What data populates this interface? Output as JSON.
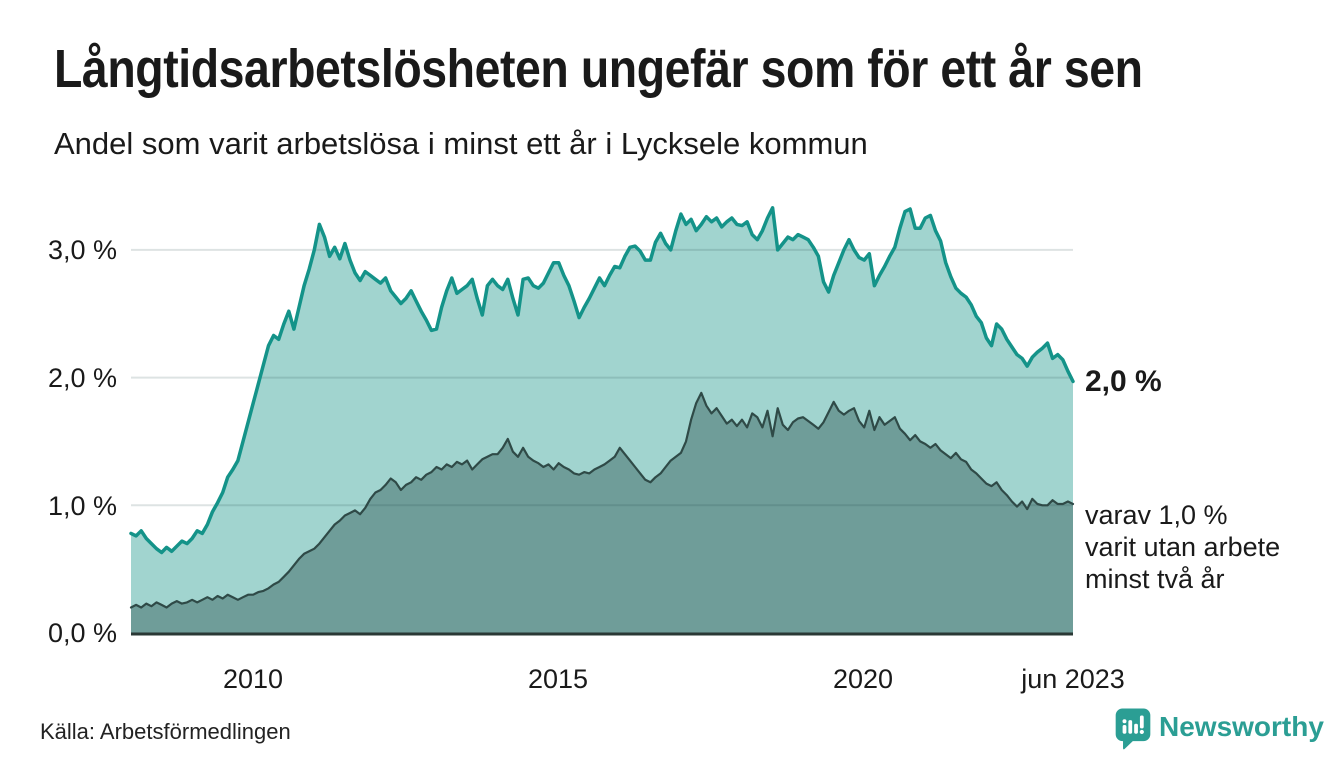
{
  "page": {
    "title": "Långtidsarbetslösheten ungefär som för ett år sen",
    "subtitle": "Andel som varit arbetslösa i minst ett år i Lycksele kommun",
    "source": "Källa: Arbetsförmedlingen",
    "brand": "Newsworthy",
    "background_color": "#ffffff",
    "text_color": "#1a1a1a",
    "brand_color": "#2b9e94"
  },
  "annotations": {
    "end_label": "2,0 %",
    "note_lines": [
      "varav 1,0 %",
      "varit utan arbete",
      "minst två år"
    ]
  },
  "chart_data": {
    "type": "area",
    "title": "Långtidsarbetslösheten ungefär som för ett år sen",
    "subtitle": "Andel som varit arbetslösa i minst ett år i Lycksele kommun",
    "x_unit": "month",
    "x_range": [
      "jan 2008",
      "jun 2023"
    ],
    "x_ticks": [
      {
        "label": "2010"
      },
      {
        "label": "2015"
      },
      {
        "label": "2020"
      },
      {
        "label": "jun 2023"
      }
    ],
    "y_ticks": [
      {
        "label": "0,0 %",
        "value": 0
      },
      {
        "label": "1,0 %",
        "value": 1
      },
      {
        "label": "2,0 %",
        "value": 2
      },
      {
        "label": "3,0 %",
        "value": 3
      }
    ],
    "ylim": [
      0,
      3.45
    ],
    "grid": true,
    "grid_color": "rgba(25,65,65,0.15)",
    "axis_line_color": "#2a3835",
    "series": [
      {
        "name": "Arbetslösa minst ett år",
        "line_color": "#149389",
        "fill_color": "#a1d4cf",
        "line_width": 3.5,
        "end_value_label": "2,0 %",
        "values": [
          0.78,
          0.76,
          0.8,
          0.74,
          0.7,
          0.66,
          0.63,
          0.67,
          0.64,
          0.68,
          0.72,
          0.7,
          0.74,
          0.8,
          0.78,
          0.85,
          0.95,
          1.02,
          1.1,
          1.22,
          1.28,
          1.35,
          1.5,
          1.65,
          1.8,
          1.95,
          2.1,
          2.25,
          2.33,
          2.3,
          2.42,
          2.52,
          2.38,
          2.55,
          2.72,
          2.85,
          3.0,
          3.2,
          3.1,
          2.95,
          3.02,
          2.93,
          3.05,
          2.92,
          2.82,
          2.76,
          2.83,
          2.8,
          2.77,
          2.74,
          2.78,
          2.68,
          2.63,
          2.58,
          2.62,
          2.68,
          2.6,
          2.52,
          2.45,
          2.37,
          2.38,
          2.55,
          2.68,
          2.78,
          2.66,
          2.69,
          2.72,
          2.77,
          2.62,
          2.49,
          2.72,
          2.77,
          2.72,
          2.69,
          2.77,
          2.62,
          2.49,
          2.77,
          2.78,
          2.72,
          2.7,
          2.74,
          2.82,
          2.9,
          2.9,
          2.8,
          2.72,
          2.6,
          2.47,
          2.55,
          2.62,
          2.7,
          2.78,
          2.72,
          2.8,
          2.87,
          2.86,
          2.95,
          3.02,
          3.03,
          2.99,
          2.92,
          2.92,
          3.06,
          3.13,
          3.05,
          3.0,
          3.15,
          3.28,
          3.2,
          3.24,
          3.15,
          3.2,
          3.26,
          3.22,
          3.25,
          3.18,
          3.22,
          3.25,
          3.2,
          3.19,
          3.22,
          3.12,
          3.08,
          3.15,
          3.25,
          3.33,
          3.0,
          3.05,
          3.1,
          3.08,
          3.12,
          3.1,
          3.08,
          3.02,
          2.95,
          2.75,
          2.67,
          2.8,
          2.9,
          3.0,
          3.08,
          3.0,
          2.94,
          2.92,
          2.97,
          2.72,
          2.8,
          2.87,
          2.95,
          3.02,
          3.17,
          3.3,
          3.32,
          3.17,
          3.17,
          3.25,
          3.27,
          3.15,
          3.07,
          2.9,
          2.79,
          2.7,
          2.66,
          2.63,
          2.57,
          2.48,
          2.43,
          2.31,
          2.25,
          2.42,
          2.38,
          2.3,
          2.24,
          2.18,
          2.15,
          2.09,
          2.16,
          2.2,
          2.23,
          2.27,
          2.15,
          2.18,
          2.14,
          2.05,
          1.97
        ]
      },
      {
        "name": "Arbetslösa minst två år",
        "line_color": "#2f4a47",
        "fill_color": "#6f9d99",
        "line_width": 2.2,
        "end_value_label": "1,0 %",
        "values": [
          0.2,
          0.22,
          0.2,
          0.23,
          0.21,
          0.24,
          0.22,
          0.2,
          0.23,
          0.25,
          0.23,
          0.24,
          0.26,
          0.24,
          0.26,
          0.28,
          0.26,
          0.29,
          0.27,
          0.3,
          0.28,
          0.26,
          0.28,
          0.3,
          0.3,
          0.32,
          0.33,
          0.35,
          0.38,
          0.4,
          0.44,
          0.48,
          0.53,
          0.58,
          0.62,
          0.64,
          0.66,
          0.7,
          0.75,
          0.8,
          0.85,
          0.88,
          0.92,
          0.94,
          0.96,
          0.93,
          0.98,
          1.05,
          1.1,
          1.12,
          1.16,
          1.21,
          1.18,
          1.12,
          1.16,
          1.18,
          1.22,
          1.2,
          1.24,
          1.26,
          1.3,
          1.28,
          1.32,
          1.3,
          1.34,
          1.32,
          1.35,
          1.28,
          1.32,
          1.36,
          1.38,
          1.4,
          1.4,
          1.45,
          1.52,
          1.42,
          1.38,
          1.45,
          1.38,
          1.35,
          1.33,
          1.3,
          1.32,
          1.28,
          1.33,
          1.3,
          1.28,
          1.25,
          1.24,
          1.26,
          1.25,
          1.28,
          1.3,
          1.32,
          1.35,
          1.38,
          1.45,
          1.4,
          1.35,
          1.3,
          1.25,
          1.2,
          1.18,
          1.22,
          1.25,
          1.3,
          1.35,
          1.38,
          1.41,
          1.5,
          1.67,
          1.8,
          1.88,
          1.78,
          1.72,
          1.76,
          1.7,
          1.64,
          1.67,
          1.62,
          1.67,
          1.61,
          1.72,
          1.69,
          1.61,
          1.74,
          1.54,
          1.76,
          1.63,
          1.59,
          1.65,
          1.68,
          1.69,
          1.66,
          1.63,
          1.6,
          1.65,
          1.73,
          1.81,
          1.74,
          1.71,
          1.74,
          1.76,
          1.66,
          1.61,
          1.74,
          1.59,
          1.69,
          1.63,
          1.66,
          1.69,
          1.6,
          1.56,
          1.51,
          1.55,
          1.5,
          1.48,
          1.45,
          1.48,
          1.43,
          1.4,
          1.37,
          1.41,
          1.36,
          1.34,
          1.28,
          1.25,
          1.21,
          1.17,
          1.15,
          1.18,
          1.12,
          1.08,
          1.03,
          0.99,
          1.03,
          0.97,
          1.05,
          1.01,
          1.0,
          1.0,
          1.04,
          1.01,
          1.01,
          1.03,
          1.01
        ]
      }
    ]
  }
}
